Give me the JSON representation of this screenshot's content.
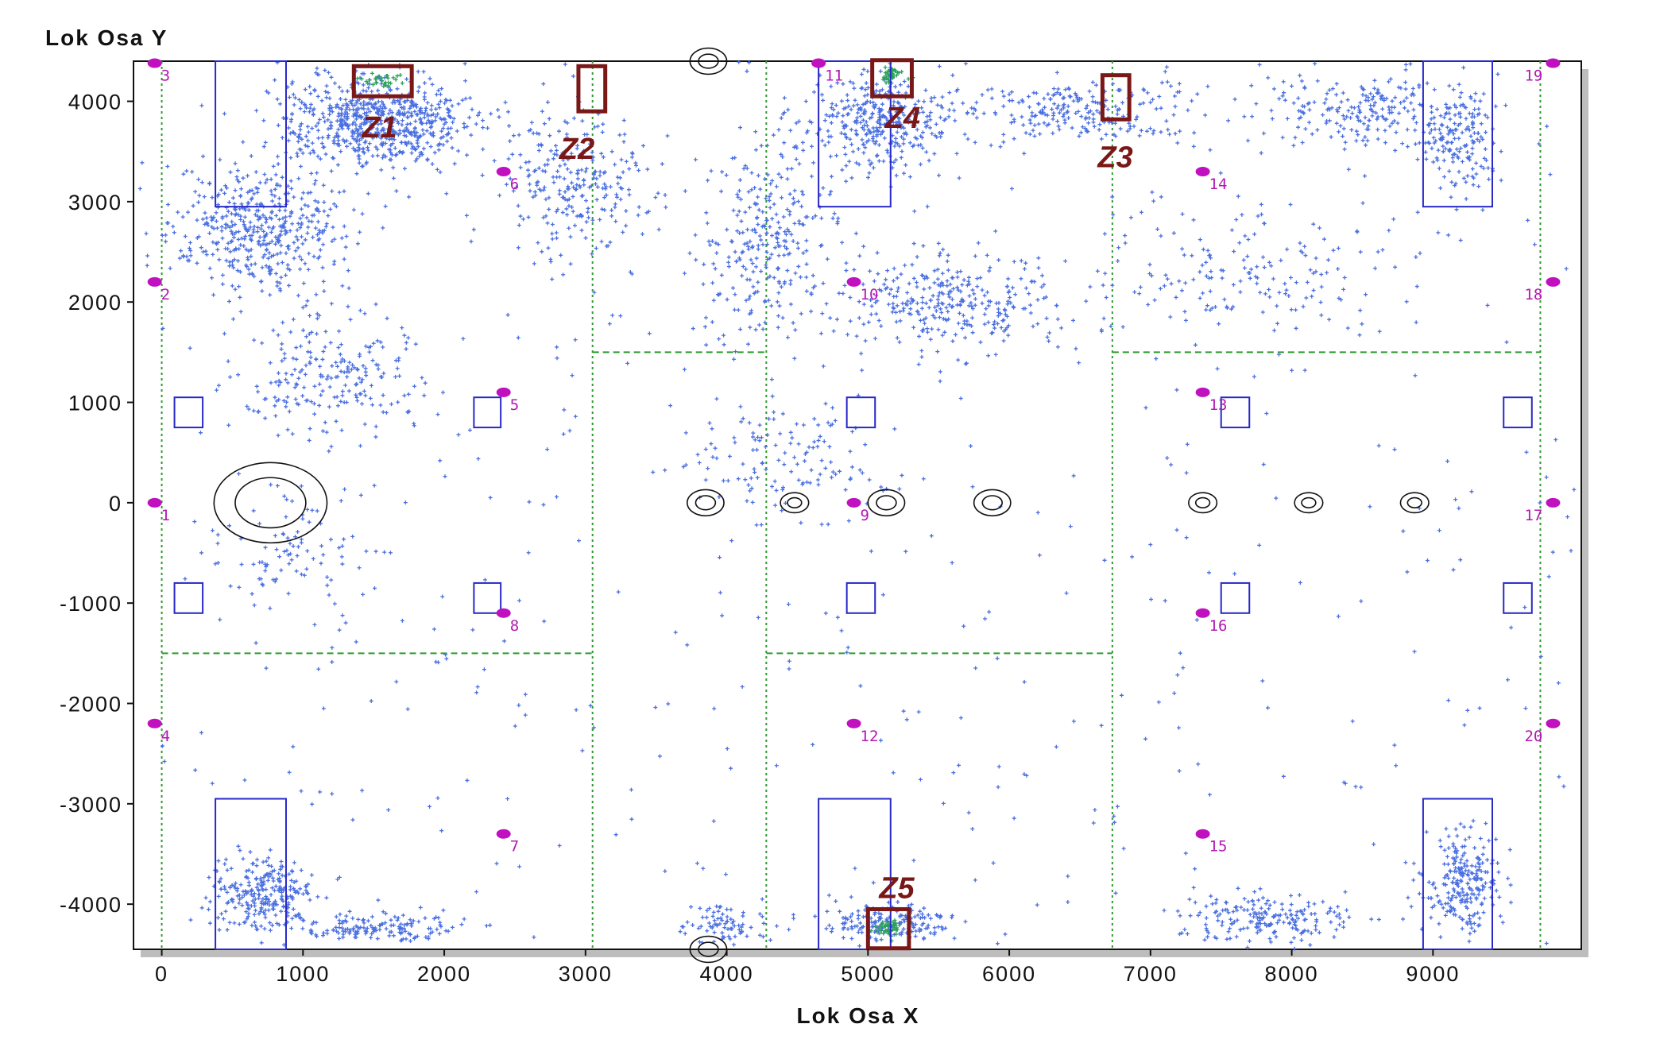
{
  "chart_data": {
    "type": "scatter",
    "xlabel": "Lok Osa X",
    "ylabel": "Lok Osa Y",
    "xlim": [
      -200,
      10050
    ],
    "ylim": [
      -4450,
      4400
    ],
    "x_ticks": [
      0,
      1000,
      2000,
      3000,
      4000,
      5000,
      6000,
      7000,
      8000,
      9000
    ],
    "y_ticks": [
      4000,
      3000,
      2000,
      1000,
      0,
      -1000,
      -2000,
      -3000,
      -4000
    ],
    "colors": {
      "points": "#4a6fe0",
      "points_hot": "#2aa05a",
      "hall_outline": "#2828c8",
      "grid": "#2f9a2f",
      "sensor": "#c010c0",
      "zone": "#7a1717",
      "obstacle": "#111111",
      "frame_shadow": "#bdbdbd"
    },
    "sensors": [
      {
        "label": "1",
        "x": -50,
        "y": 0
      },
      {
        "label": "2",
        "x": -50,
        "y": 2200
      },
      {
        "label": "3",
        "x": -50,
        "y": 4380
      },
      {
        "label": "4",
        "x": -50,
        "y": -2200
      },
      {
        "label": "5",
        "x": 2420,
        "y": 1100
      },
      {
        "label": "6",
        "x": 2420,
        "y": 3300
      },
      {
        "label": "7",
        "x": 2420,
        "y": -3300
      },
      {
        "label": "8",
        "x": 2420,
        "y": -1100
      },
      {
        "label": "9",
        "x": 4900,
        "y": 0
      },
      {
        "label": "10",
        "x": 4900,
        "y": 2200
      },
      {
        "label": "11",
        "x": 4650,
        "y": 4380
      },
      {
        "label": "12",
        "x": 4900,
        "y": -2200
      },
      {
        "label": "13",
        "x": 7370,
        "y": 1100
      },
      {
        "label": "14",
        "x": 7370,
        "y": 3300
      },
      {
        "label": "15",
        "x": 7370,
        "y": -3300
      },
      {
        "label": "16",
        "x": 7370,
        "y": -1100
      },
      {
        "label": "17",
        "x": 9850,
        "y": 0
      },
      {
        "label": "18",
        "x": 9850,
        "y": 2200
      },
      {
        "label": "19",
        "x": 9850,
        "y": 4380
      },
      {
        "label": "20",
        "x": 9850,
        "y": -2200
      }
    ],
    "zones": [
      {
        "label": "Z1",
        "x0": 1360,
        "x1": 1770,
        "y0": 4050,
        "y1": 4350
      },
      {
        "label": "Z2",
        "x0": 2950,
        "x1": 3140,
        "y0": 3900,
        "y1": 4350
      },
      {
        "label": "Z3",
        "x0": 6660,
        "x1": 6850,
        "y0": 3820,
        "y1": 4260
      },
      {
        "label": "Z4",
        "x0": 5030,
        "x1": 5310,
        "y0": 4050,
        "y1": 4410
      },
      {
        "label": "Z5",
        "x0": 5000,
        "x1": 5290,
        "y0": -4440,
        "y1": -4050
      }
    ],
    "hall_rects": [
      {
        "x0": 380,
        "x1": 880,
        "y0": 2950,
        "y1": 4400
      },
      {
        "x0": 4650,
        "x1": 5160,
        "y0": 2950,
        "y1": 4400
      },
      {
        "x0": 8930,
        "x1": 9420,
        "y0": 2950,
        "y1": 4400
      },
      {
        "x0": 380,
        "x1": 880,
        "y0": -4450,
        "y1": -2950
      },
      {
        "x0": 4650,
        "x1": 5160,
        "y0": -4450,
        "y1": -2950
      },
      {
        "x0": 8930,
        "x1": 9420,
        "y0": -4450,
        "y1": -2950
      },
      {
        "x0": 90,
        "x1": 290,
        "y0": 750,
        "y1": 1050
      },
      {
        "x0": 2210,
        "x1": 2400,
        "y0": 750,
        "y1": 1050
      },
      {
        "x0": 4850,
        "x1": 5050,
        "y0": 750,
        "y1": 1050
      },
      {
        "x0": 7500,
        "x1": 7700,
        "y0": 750,
        "y1": 1050
      },
      {
        "x0": 9500,
        "x1": 9700,
        "y0": 750,
        "y1": 1050
      },
      {
        "x0": 90,
        "x1": 290,
        "y0": -1100,
        "y1": -800
      },
      {
        "x0": 2210,
        "x1": 2400,
        "y0": -1100,
        "y1": -800
      },
      {
        "x0": 4850,
        "x1": 5050,
        "y0": -1100,
        "y1": -800
      },
      {
        "x0": 7500,
        "x1": 7700,
        "y0": -1100,
        "y1": -800
      },
      {
        "x0": 9500,
        "x1": 9700,
        "y0": -1100,
        "y1": -800
      }
    ],
    "grid_vertical_x": [
      0,
      3050,
      4280,
      6730,
      9760
    ],
    "grid_horizontal": [
      {
        "y": 1500,
        "x0": 3050,
        "x1": 4280
      },
      {
        "y": 1500,
        "x0": 6730,
        "x1": 9760
      },
      {
        "y": -1500,
        "x0": 0,
        "x1": 3050
      },
      {
        "y": -1500,
        "x0": 4280,
        "x1": 6730
      }
    ],
    "obstacles": [
      {
        "x": 770,
        "y": 0,
        "r": [
          400,
          250
        ]
      },
      {
        "x": 3850,
        "y": 0,
        "r": [
          130,
          70
        ]
      },
      {
        "x": 4480,
        "y": 0,
        "r": [
          100,
          50
        ]
      },
      {
        "x": 5130,
        "y": 0,
        "r": [
          130,
          70
        ]
      },
      {
        "x": 5880,
        "y": 0,
        "r": [
          130,
          70
        ]
      },
      {
        "x": 7370,
        "y": 0,
        "r": [
          100,
          50
        ]
      },
      {
        "x": 8120,
        "y": 0,
        "r": [
          100,
          50
        ]
      },
      {
        "x": 8870,
        "y": 0,
        "r": [
          100,
          50
        ]
      },
      {
        "x": 3870,
        "y": 4400,
        "r": [
          130,
          70
        ]
      },
      {
        "x": 3870,
        "y": -4450,
        "r": [
          130,
          70
        ]
      }
    ],
    "point_clusters": [
      {
        "x": 1500,
        "y": 3800,
        "sx": 700,
        "sy": 450,
        "n": 700
      },
      {
        "x": 700,
        "y": 2700,
        "sx": 600,
        "sy": 600,
        "n": 450
      },
      {
        "x": 1200,
        "y": 1300,
        "sx": 700,
        "sy": 600,
        "n": 220
      },
      {
        "x": 2900,
        "y": 3200,
        "sx": 500,
        "sy": 700,
        "n": 260
      },
      {
        "x": 4300,
        "y": 2600,
        "sx": 500,
        "sy": 900,
        "n": 300
      },
      {
        "x": 5100,
        "y": 3800,
        "sx": 500,
        "sy": 450,
        "n": 350
      },
      {
        "x": 5600,
        "y": 2000,
        "sx": 800,
        "sy": 500,
        "n": 320
      },
      {
        "x": 6500,
        "y": 3900,
        "sx": 900,
        "sy": 300,
        "n": 240
      },
      {
        "x": 8500,
        "y": 3900,
        "sx": 700,
        "sy": 350,
        "n": 220
      },
      {
        "x": 9200,
        "y": 3600,
        "sx": 250,
        "sy": 500,
        "n": 160
      },
      {
        "x": 7600,
        "y": 2300,
        "sx": 1100,
        "sy": 700,
        "n": 160
      },
      {
        "x": 4400,
        "y": 400,
        "sx": 700,
        "sy": 600,
        "n": 130
      },
      {
        "x": 900,
        "y": -500,
        "sx": 600,
        "sy": 600,
        "n": 90
      },
      {
        "x": 700,
        "y": -3900,
        "sx": 350,
        "sy": 350,
        "n": 260
      },
      {
        "x": 1500,
        "y": -4250,
        "sx": 600,
        "sy": 150,
        "n": 160
      },
      {
        "x": 5150,
        "y": -4200,
        "sx": 500,
        "sy": 200,
        "n": 180
      },
      {
        "x": 7800,
        "y": -4150,
        "sx": 600,
        "sy": 250,
        "n": 200
      },
      {
        "x": 9200,
        "y": -3800,
        "sx": 250,
        "sy": 500,
        "n": 240
      },
      {
        "x": 4000,
        "y": -4200,
        "sx": 300,
        "sy": 200,
        "n": 80
      },
      {
        "x": 5000,
        "y": 0,
        "sx": 5000,
        "sy": 4400,
        "n": 500,
        "uniform": true
      }
    ],
    "hot_clusters": [
      {
        "x": 1560,
        "y": 4200,
        "sx": 140,
        "sy": 70,
        "n": 30
      },
      {
        "x": 5170,
        "y": 4260,
        "sx": 90,
        "sy": 80,
        "n": 40
      },
      {
        "x": 5150,
        "y": -4240,
        "sx": 90,
        "sy": 90,
        "n": 45
      }
    ]
  }
}
